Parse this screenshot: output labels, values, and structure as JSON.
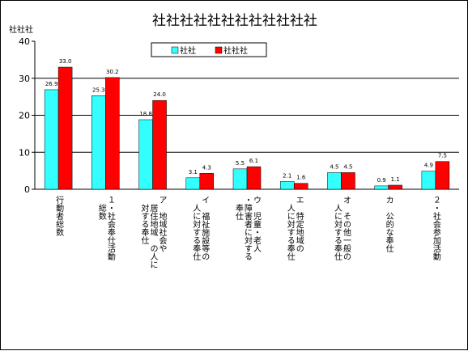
{
  "chart_data": {
    "type": "bar",
    "title": "社社社社社社社社社社社社",
    "ylabel": "社社社",
    "ylim": [
      0,
      40
    ],
    "yticks": [
      0,
      10,
      20,
      30,
      40
    ],
    "grid": true,
    "legend_position": "top",
    "categories": [
      "行動者総数",
      "１・社会奉仕活動　総数",
      "ア　地域社会や　居住地域　の人に　対する奉仕",
      "イ　福祉施設等の　人に対する奉仕",
      "ウ　児童・老人・障害者に対する　奉仕",
      "エ　特定地域の　人に対する奉仕",
      "オ　その他一般の　人に対する奉仕",
      "カ　公的な奉仕",
      "２・社会参加活動"
    ],
    "category_columns": [
      [
        "行動者総数"
      ],
      [
        "１・社会奉仕活動",
        "　総数"
      ],
      [
        "ア　地域社会や",
        "　居住地域　の人に",
        "　対する奉仕"
      ],
      [
        "イ　福祉施設等の",
        "　人に対する奉仕"
      ],
      [
        "ウ　児童・老人",
        "・障害者に対する",
        "　奉仕"
      ],
      [
        "エ　特定地域の",
        "　人に対する奉仕"
      ],
      [
        "オ　その他一般の",
        "　人に対する奉仕"
      ],
      [
        "カ　公的な奉仕"
      ],
      [
        "２・社会参加活動"
      ]
    ],
    "series": [
      {
        "name": "社社",
        "color": "#33ffff",
        "values": [
          26.9,
          25.3,
          18.8,
          3.1,
          5.5,
          2.1,
          4.5,
          0.9,
          4.9
        ]
      },
      {
        "name": "社社社",
        "color": "#ff0000",
        "values": [
          33.0,
          30.2,
          24.0,
          4.3,
          6.1,
          1.6,
          4.5,
          1.1,
          7.5
        ]
      }
    ]
  }
}
